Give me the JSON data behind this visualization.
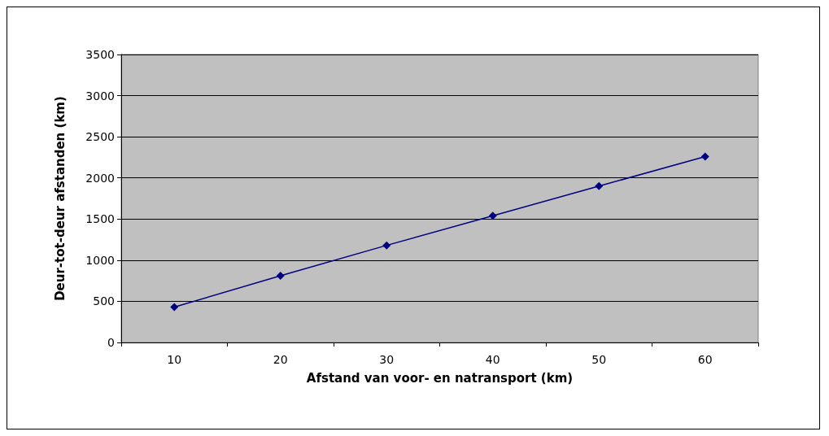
{
  "chart_data": {
    "type": "line",
    "xlabel": "Afstand van voor- en natransport (km)",
    "ylabel": "Deur-tot-deur afstanden (km)",
    "categories": [
      "10",
      "20",
      "30",
      "40",
      "50",
      "60"
    ],
    "series": [
      {
        "color": "#000080",
        "values": [
          430,
          810,
          1180,
          1540,
          1900,
          2260
        ]
      }
    ],
    "ylim": [
      0,
      3500
    ],
    "yticks": [
      0,
      500,
      1000,
      1500,
      2000,
      2500,
      3000,
      3500
    ],
    "grid": "y",
    "marker": "diamond",
    "line_style": "solid"
  }
}
